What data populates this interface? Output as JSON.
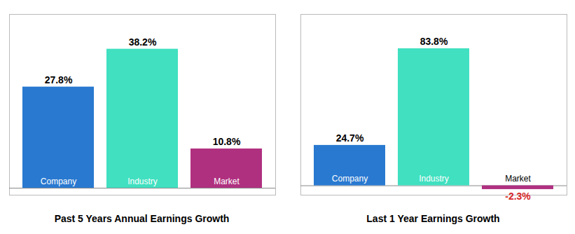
{
  "chart_data": [
    {
      "type": "bar",
      "title": "Past 5 Years Annual Earnings Growth",
      "categories": [
        "Company",
        "Industry",
        "Market"
      ],
      "values": [
        27.8,
        38.2,
        10.8
      ],
      "value_labels": [
        "27.8%",
        "38.2%",
        "10.8%"
      ],
      "colors": [
        "#2979d0",
        "#40e0c0",
        "#b03080"
      ],
      "ylim": [
        -1.91,
        47.75
      ],
      "data_labels": true,
      "tick_labels": false,
      "grid": false
    },
    {
      "type": "bar",
      "title": "Last 1 Year Earnings Growth",
      "categories": [
        "Company",
        "Industry",
        "Market"
      ],
      "values": [
        24.7,
        83.8,
        -2.3
      ],
      "value_labels": [
        "24.7%",
        "83.8%",
        "-2.3%"
      ],
      "colors": [
        "#2979d0",
        "#40e0c0",
        "#b03080"
      ],
      "ylim": [
        -5.75,
        104.75
      ],
      "data_labels": true,
      "tick_labels": false,
      "grid": false
    }
  ]
}
